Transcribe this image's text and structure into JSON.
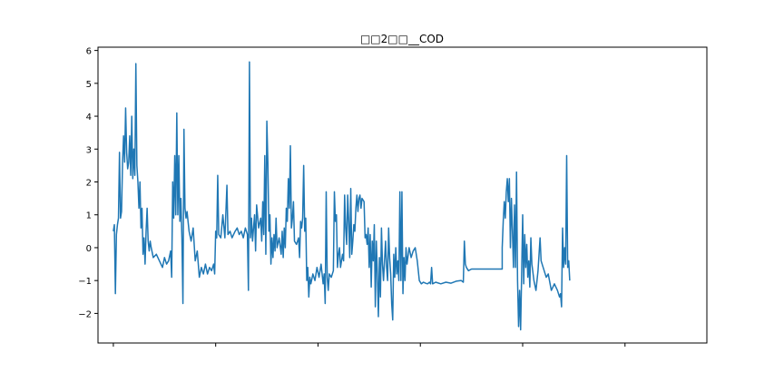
{
  "chart_data": {
    "type": "line",
    "title": "□□2□□__COD",
    "xlabel": "",
    "ylabel": "",
    "ylim": [
      -2.9,
      6.1
    ],
    "xlim": [
      -30,
      1160
    ],
    "grid": false,
    "legend": "none",
    "yticks": [
      -2,
      -1,
      0,
      1,
      2,
      3,
      4,
      5,
      6
    ],
    "xticks": [
      0,
      200,
      400,
      600,
      800,
      1000
    ],
    "show_x_tick_labels": false,
    "series": [
      {
        "color": "#1f77b4",
        "points": [
          [
            0,
            0.5
          ],
          [
            2,
            0.7
          ],
          [
            4,
            -1.4
          ],
          [
            6,
            0.4
          ],
          [
            8,
            0.7
          ],
          [
            10,
            0.9
          ],
          [
            12,
            2.9
          ],
          [
            14,
            0.9
          ],
          [
            16,
            1.1
          ],
          [
            18,
            2.6
          ],
          [
            20,
            3.4
          ],
          [
            22,
            2.6
          ],
          [
            24,
            4.25
          ],
          [
            26,
            2.9
          ],
          [
            28,
            2.4
          ],
          [
            30,
            2.6
          ],
          [
            32,
            3.4
          ],
          [
            34,
            2.2
          ],
          [
            36,
            4.0
          ],
          [
            38,
            2.1
          ],
          [
            40,
            3.0
          ],
          [
            42,
            2.2
          ],
          [
            44,
            5.6
          ],
          [
            46,
            2.5
          ],
          [
            48,
            2.0
          ],
          [
            50,
            1.2
          ],
          [
            52,
            2.0
          ],
          [
            54,
            0.6
          ],
          [
            56,
            1.2
          ],
          [
            58,
            -0.2
          ],
          [
            60,
            0.3
          ],
          [
            62,
            -0.5
          ],
          [
            64,
            0.5
          ],
          [
            66,
            1.2
          ],
          [
            68,
            0.2
          ],
          [
            70,
            -0.1
          ],
          [
            72,
            0.2
          ],
          [
            74,
            0.0
          ],
          [
            78,
            -0.3
          ],
          [
            84,
            -0.2
          ],
          [
            90,
            -0.4
          ],
          [
            96,
            -0.6
          ],
          [
            100,
            -0.3
          ],
          [
            104,
            -0.5
          ],
          [
            108,
            -0.4
          ],
          [
            112,
            -0.1
          ],
          [
            114,
            -0.9
          ],
          [
            116,
            2.0
          ],
          [
            118,
            0.9
          ],
          [
            120,
            2.8
          ],
          [
            122,
            1.0
          ],
          [
            124,
            4.1
          ],
          [
            126,
            1.0
          ],
          [
            128,
            2.8
          ],
          [
            130,
            0.8
          ],
          [
            132,
            1.5
          ],
          [
            134,
            0.3
          ],
          [
            136,
            -1.7
          ],
          [
            138,
            3.6
          ],
          [
            140,
            1.2
          ],
          [
            142,
            0.9
          ],
          [
            144,
            1.1
          ],
          [
            148,
            0.5
          ],
          [
            152,
            0.2
          ],
          [
            156,
            0.6
          ],
          [
            160,
            -0.4
          ],
          [
            164,
            -0.1
          ],
          [
            168,
            -0.9
          ],
          [
            172,
            -0.6
          ],
          [
            176,
            -0.8
          ],
          [
            180,
            -0.5
          ],
          [
            184,
            -0.8
          ],
          [
            188,
            -0.6
          ],
          [
            192,
            -0.7
          ],
          [
            196,
            -0.5
          ],
          [
            198,
            -0.8
          ],
          [
            200,
            0.5
          ],
          [
            202,
            0.3
          ],
          [
            204,
            2.2
          ],
          [
            206,
            0.4
          ],
          [
            210,
            0.3
          ],
          [
            214,
            1.0
          ],
          [
            218,
            0.3
          ],
          [
            222,
            1.9
          ],
          [
            224,
            0.4
          ],
          [
            228,
            0.5
          ],
          [
            232,
            0.3
          ],
          [
            238,
            0.5
          ],
          [
            242,
            0.6
          ],
          [
            246,
            0.4
          ],
          [
            250,
            0.5
          ],
          [
            254,
            0.3
          ],
          [
            258,
            0.6
          ],
          [
            262,
            0.4
          ],
          [
            264,
            -1.3
          ],
          [
            266,
            5.65
          ],
          [
            268,
            0.3
          ],
          [
            270,
            0.9
          ],
          [
            272,
            0.2
          ],
          [
            276,
            1.0
          ],
          [
            278,
            -0.1
          ],
          [
            280,
            1.3
          ],
          [
            284,
            0.6
          ],
          [
            288,
            0.9
          ],
          [
            290,
            0.2
          ],
          [
            292,
            1.4
          ],
          [
            294,
            0.4
          ],
          [
            296,
            2.8
          ],
          [
            298,
            -0.2
          ],
          [
            300,
            3.85
          ],
          [
            302,
            2.6
          ],
          [
            304,
            0.5
          ],
          [
            306,
            1.0
          ],
          [
            308,
            -0.5
          ],
          [
            310,
            0.3
          ],
          [
            312,
            -0.3
          ],
          [
            314,
            0.4
          ],
          [
            316,
            -0.1
          ],
          [
            318,
            0.9
          ],
          [
            320,
            0.0
          ],
          [
            324,
            0.3
          ],
          [
            328,
            -0.2
          ],
          [
            330,
            0.5
          ],
          [
            332,
            -0.3
          ],
          [
            334,
            0.6
          ],
          [
            336,
            0.0
          ],
          [
            338,
            1.2
          ],
          [
            340,
            0.8
          ],
          [
            342,
            2.1
          ],
          [
            344,
            1.2
          ],
          [
            346,
            3.1
          ],
          [
            348,
            0.6
          ],
          [
            350,
            0.9
          ],
          [
            352,
            1.4
          ],
          [
            354,
            0.2
          ],
          [
            358,
            0.1
          ],
          [
            362,
            0.3
          ],
          [
            364,
            -0.3
          ],
          [
            366,
            0.8
          ],
          [
            368,
            0.6
          ],
          [
            370,
            0.9
          ],
          [
            372,
            2.5
          ],
          [
            374,
            0.5
          ],
          [
            376,
            0.9
          ],
          [
            378,
            -1.0
          ],
          [
            380,
            -0.6
          ],
          [
            382,
            -1.5
          ],
          [
            384,
            -0.9
          ],
          [
            386,
            -1.1
          ],
          [
            390,
            -0.8
          ],
          [
            394,
            -1.0
          ],
          [
            398,
            -0.6
          ],
          [
            402,
            -0.9
          ],
          [
            406,
            -0.5
          ],
          [
            410,
            -1.1
          ],
          [
            412,
            -0.8
          ],
          [
            414,
            -1.7
          ],
          [
            416,
            1.7
          ],
          [
            418,
            -0.9
          ],
          [
            420,
            -1.3
          ],
          [
            422,
            -0.8
          ],
          [
            426,
            -0.9
          ],
          [
            430,
            -0.7
          ],
          [
            432,
            1.7
          ],
          [
            434,
            0.8
          ],
          [
            436,
            1.0
          ],
          [
            438,
            -0.6
          ],
          [
            440,
            -0.2
          ],
          [
            442,
            0.0
          ],
          [
            444,
            -0.6
          ],
          [
            448,
            -0.2
          ],
          [
            450,
            -0.4
          ],
          [
            452,
            1.6
          ],
          [
            454,
            0.6
          ],
          [
            456,
            0.1
          ],
          [
            458,
            1.6
          ],
          [
            460,
            0.8
          ],
          [
            462,
            -0.3
          ],
          [
            464,
            1.8
          ],
          [
            466,
            -0.2
          ],
          [
            468,
            0.2
          ],
          [
            470,
            0.7
          ],
          [
            472,
            0.5
          ],
          [
            474,
            1.2
          ],
          [
            476,
            1.6
          ],
          [
            478,
            1.1
          ],
          [
            480,
            1.5
          ],
          [
            482,
            1.6
          ],
          [
            484,
            1.2
          ],
          [
            486,
            1.5
          ],
          [
            490,
            1.4
          ],
          [
            492,
            0.3
          ],
          [
            494,
            0.4
          ],
          [
            496,
            0.1
          ],
          [
            498,
            0.6
          ],
          [
            500,
            -0.6
          ],
          [
            502,
            0.4
          ],
          [
            504,
            -1.2
          ],
          [
            506,
            0.2
          ],
          [
            508,
            -0.4
          ],
          [
            510,
            0.7
          ],
          [
            512,
            -1.8
          ],
          [
            514,
            0.2
          ],
          [
            516,
            -0.8
          ],
          [
            518,
            -2.1
          ],
          [
            520,
            -0.3
          ],
          [
            522,
            -1.5
          ],
          [
            524,
            0.6
          ],
          [
            526,
            -0.5
          ],
          [
            528,
            -1.0
          ],
          [
            530,
            -0.4
          ],
          [
            532,
            0.2
          ],
          [
            534,
            -0.6
          ],
          [
            536,
            -1.0
          ],
          [
            538,
            0.6
          ],
          [
            540,
            -0.3
          ],
          [
            542,
            -0.8
          ],
          [
            544,
            -1.7
          ],
          [
            546,
            -2.2
          ],
          [
            548,
            -0.2
          ],
          [
            550,
            -0.9
          ],
          [
            552,
            0.0
          ],
          [
            554,
            -0.8
          ],
          [
            556,
            -0.4
          ],
          [
            558,
            -1.0
          ],
          [
            560,
            1.7
          ],
          [
            562,
            -1.0
          ],
          [
            564,
            1.7
          ],
          [
            566,
            -1.4
          ],
          [
            568,
            -0.3
          ],
          [
            570,
            -1.0
          ],
          [
            572,
            0.0
          ],
          [
            574,
            -0.5
          ],
          [
            578,
            0.0
          ],
          [
            582,
            -0.3
          ],
          [
            586,
            -0.1
          ],
          [
            590,
            0.0
          ],
          [
            594,
            -0.4
          ],
          [
            598,
            -1.0
          ],
          [
            602,
            -1.1
          ],
          [
            606,
            -1.05
          ],
          [
            610,
            -1.08
          ],
          [
            614,
            -1.1
          ],
          [
            618,
            -1.05
          ],
          [
            620,
            -1.1
          ],
          [
            622,
            -0.6
          ],
          [
            624,
            -1.1
          ],
          [
            630,
            -1.05
          ],
          [
            640,
            -1.1
          ],
          [
            650,
            -1.05
          ],
          [
            660,
            -1.08
          ],
          [
            670,
            -1.02
          ],
          [
            680,
            -1.0
          ],
          [
            684,
            -1.05
          ],
          [
            686,
            0.2
          ],
          [
            688,
            -0.5
          ],
          [
            690,
            -0.6
          ],
          [
            694,
            -0.7
          ],
          [
            700,
            -0.65
          ],
          [
            760,
            -0.65
          ],
          [
            760,
            0.0
          ],
          [
            762,
            0.8
          ],
          [
            764,
            1.4
          ],
          [
            766,
            0.9
          ],
          [
            768,
            1.7
          ],
          [
            770,
            2.1
          ],
          [
            772,
            1.4
          ],
          [
            774,
            2.1
          ],
          [
            776,
            0.0
          ],
          [
            778,
            1.5
          ],
          [
            780,
            0.5
          ],
          [
            782,
            -0.6
          ],
          [
            784,
            1.3
          ],
          [
            786,
            -0.6
          ],
          [
            788,
            2.3
          ],
          [
            790,
            -1.0
          ],
          [
            792,
            -2.4
          ],
          [
            794,
            -1.3
          ],
          [
            796,
            -2.5
          ],
          [
            798,
            -0.8
          ],
          [
            800,
            1.0
          ],
          [
            802,
            -1.1
          ],
          [
            804,
            0.4
          ],
          [
            806,
            -0.6
          ],
          [
            808,
            0.1
          ],
          [
            810,
            -0.9
          ],
          [
            812,
            -0.4
          ],
          [
            814,
            -1.2
          ],
          [
            816,
            0.3
          ],
          [
            818,
            -0.5
          ],
          [
            822,
            -1.0
          ],
          [
            826,
            -1.3
          ],
          [
            830,
            -0.7
          ],
          [
            834,
            0.3
          ],
          [
            836,
            -0.4
          ],
          [
            840,
            -0.6
          ],
          [
            846,
            -0.9
          ],
          [
            850,
            -0.8
          ],
          [
            856,
            -1.3
          ],
          [
            862,
            -1.1
          ],
          [
            868,
            -1.3
          ],
          [
            872,
            -1.5
          ],
          [
            874,
            -1.4
          ],
          [
            876,
            -1.8
          ],
          [
            878,
            0.6
          ],
          [
            880,
            -0.6
          ],
          [
            882,
            0.0
          ],
          [
            884,
            -0.5
          ],
          [
            886,
            2.8
          ],
          [
            888,
            -0.6
          ],
          [
            890,
            -0.4
          ],
          [
            892,
            -1.0
          ]
        ]
      }
    ]
  }
}
